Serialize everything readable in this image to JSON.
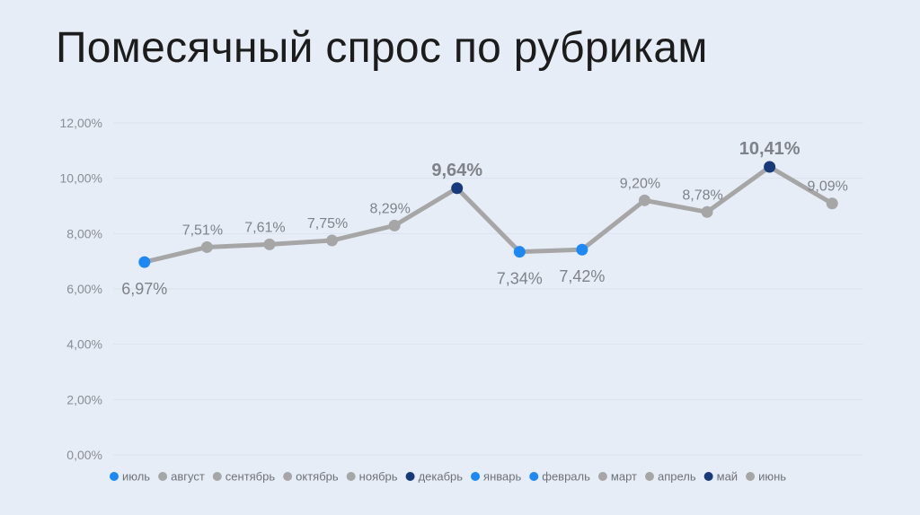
{
  "title": "Помесячный спрос по рубрикам",
  "chart_data": {
    "type": "line",
    "title": "Помесячный спрос по рубрикам",
    "categories": [
      "июль",
      "август",
      "сентябрь",
      "октябрь",
      "ноябрь",
      "декабрь",
      "январь",
      "февраль",
      "март",
      "апрель",
      "май",
      "июнь"
    ],
    "values": [
      6.97,
      7.51,
      7.61,
      7.75,
      8.29,
      9.64,
      7.34,
      7.42,
      9.2,
      8.78,
      10.41,
      9.09
    ],
    "value_labels": [
      "6,97%",
      "7,51%",
      "7,61%",
      "7,75%",
      "8,29%",
      "9,64%",
      "7,34%",
      "7,42%",
      "9,20%",
      "8,78%",
      "10,41%",
      "9,09%"
    ],
    "point_kinds": [
      "low",
      "normal",
      "normal",
      "normal",
      "normal",
      "high",
      "low",
      "low",
      "normal",
      "normal",
      "high",
      "normal"
    ],
    "ylim": [
      0,
      12
    ],
    "yticks": [
      0,
      2,
      4,
      6,
      8,
      10,
      12
    ],
    "ytick_labels": [
      "0,00%",
      "2,00%",
      "4,00%",
      "6,00%",
      "8,00%",
      "10,00%",
      "12,00%"
    ],
    "xlabel": "",
    "ylabel": "",
    "grid": true,
    "legend": "bottom",
    "colors": {
      "line": "#a6a6a6",
      "normal": "#a6a6a6",
      "low": "#1e88f5",
      "high": "#163a7a",
      "low_text": "#1e88f5",
      "high_text": "#163a7a",
      "normal_text": "#7f8289"
    }
  }
}
